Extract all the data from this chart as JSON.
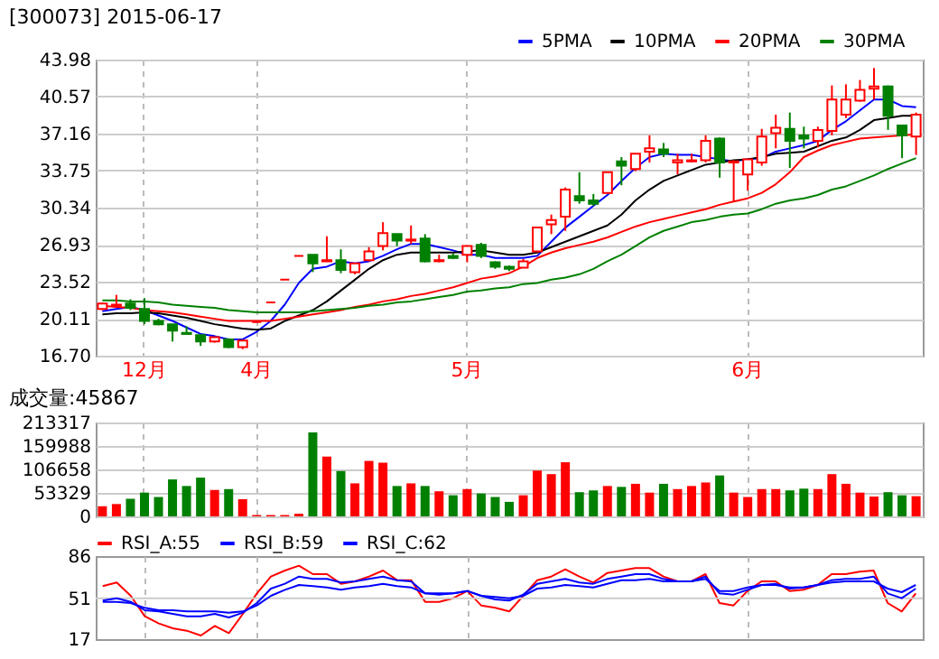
{
  "chart_data": [
    {
      "type": "candlestick",
      "title": "[300073] 2015-06-17",
      "legend": "top right",
      "grid": true,
      "categories": [
        null,
        null,
        null,
        "12月",
        null,
        null,
        null,
        null,
        null,
        null,
        null,
        "4月",
        null,
        null,
        null,
        null,
        null,
        null,
        null,
        null,
        null,
        null,
        null,
        null,
        null,
        null,
        "5月",
        null,
        null,
        null,
        null,
        null,
        null,
        null,
        null,
        null,
        null,
        null,
        null,
        null,
        null,
        null,
        null,
        null,
        null,
        null,
        "6月",
        null,
        null,
        null,
        null,
        null,
        null,
        null,
        null,
        null,
        null,
        null,
        null
      ],
      "ylim": [
        16.7,
        43.98
      ],
      "yticks": [
        {
          "value": 16.7,
          "label": "16.70"
        },
        20.11,
        23.52,
        26.93,
        30.34,
        33.75,
        37.16,
        40.57,
        43.98
      ],
      "ohlc": [
        [
          21.0,
          21.6,
          20.9,
          21.5
        ],
        [
          21.3,
          22.3,
          21.1,
          21.4
        ],
        [
          21.5,
          21.9,
          20.9,
          21.1
        ],
        [
          21.0,
          22.0,
          19.6,
          19.9
        ],
        [
          19.9,
          20.1,
          19.5,
          19.6
        ],
        [
          19.6,
          19.6,
          18.0,
          19.0
        ],
        [
          18.8,
          19.4,
          18.7,
          18.7
        ],
        [
          18.6,
          18.6,
          17.6,
          18.0
        ],
        [
          18.0,
          18.4,
          17.9,
          18.4
        ],
        [
          18.2,
          18.3,
          17.4,
          17.5
        ],
        [
          17.5,
          18.1,
          17.3,
          18.1
        ],
        [
          19.8,
          19.8,
          19.8,
          19.8
        ],
        [
          21.6,
          21.6,
          21.6,
          21.6
        ],
        [
          23.7,
          23.7,
          23.7,
          23.7
        ],
        [
          25.9,
          25.9,
          25.9,
          25.9
        ],
        [
          26.0,
          26.0,
          24.4,
          25.2
        ],
        [
          25.4,
          27.7,
          25.4,
          25.5
        ],
        [
          25.5,
          26.5,
          24.3,
          24.6
        ],
        [
          24.4,
          25.2,
          24.2,
          25.2
        ],
        [
          25.5,
          26.7,
          25.4,
          26.3
        ],
        [
          26.8,
          29.0,
          26.4,
          28.0
        ],
        [
          27.9,
          27.9,
          26.8,
          27.3
        ],
        [
          27.3,
          28.7,
          27.0,
          27.4
        ],
        [
          27.5,
          27.9,
          25.3,
          25.4
        ],
        [
          25.4,
          26.0,
          25.3,
          25.5
        ],
        [
          25.9,
          26.1,
          25.6,
          25.7
        ],
        [
          26.0,
          26.8,
          25.3,
          26.8
        ],
        [
          26.9,
          27.1,
          25.7,
          25.9
        ],
        [
          25.3,
          25.4,
          24.7,
          24.9
        ],
        [
          24.9,
          25.0,
          24.5,
          24.7
        ],
        [
          24.8,
          25.6,
          24.8,
          25.4
        ],
        [
          26.3,
          28.5,
          26.3,
          28.5
        ],
        [
          28.8,
          29.7,
          27.9,
          29.2
        ],
        [
          29.5,
          32.2,
          28.2,
          32.0
        ],
        [
          31.4,
          33.6,
          30.7,
          31.0
        ],
        [
          31.0,
          31.6,
          30.5,
          30.7
        ],
        [
          31.7,
          33.6,
          31.7,
          33.6
        ],
        [
          34.6,
          35.0,
          32.4,
          34.2
        ],
        [
          33.9,
          35.3,
          33.7,
          35.3
        ],
        [
          35.5,
          37.0,
          34.5,
          35.8
        ],
        [
          35.7,
          36.3,
          35.0,
          35.3
        ],
        [
          34.5,
          35.3,
          33.4,
          34.7
        ],
        [
          34.6,
          35.3,
          34.5,
          34.7
        ],
        [
          34.7,
          37.0,
          34.5,
          36.5
        ],
        [
          36.7,
          36.8,
          33.1,
          34.5
        ],
        [
          34.5,
          34.7,
          30.9,
          34.6
        ],
        [
          33.4,
          34.8,
          31.9,
          34.8
        ],
        [
          34.5,
          37.6,
          34.2,
          36.9
        ],
        [
          37.2,
          38.9,
          35.8,
          37.7
        ],
        [
          37.6,
          39.1,
          34.0,
          36.5
        ],
        [
          37.0,
          37.8,
          35.8,
          36.7
        ],
        [
          36.5,
          37.8,
          35.9,
          37.5
        ],
        [
          37.4,
          41.6,
          37.0,
          40.3
        ],
        [
          38.9,
          41.7,
          38.6,
          40.3
        ],
        [
          40.2,
          42.1,
          40.1,
          41.2
        ],
        [
          41.3,
          43.2,
          40.3,
          41.5
        ],
        [
          41.5,
          41.6,
          37.5,
          38.8
        ],
        [
          37.9,
          37.9,
          34.9,
          37.0
        ],
        [
          36.9,
          39.1,
          35.2,
          38.9
        ]
      ],
      "colors": [
        "#ff0000",
        "#ff0000",
        "#008000",
        "#008000",
        "#008000",
        "#008000",
        "#008000",
        "#008000",
        "#ff0000",
        "#008000",
        "#ff0000",
        "#ff0000",
        "#ff0000",
        "#ff0000",
        "#ff0000",
        "#008000",
        "#ff0000",
        "#008000",
        "#ff0000",
        "#ff0000",
        "#ff0000",
        "#008000",
        "#ff0000",
        "#008000",
        "#ff0000",
        "#008000",
        "#ff0000",
        "#008000",
        "#008000",
        "#008000",
        "#ff0000",
        "#ff0000",
        "#ff0000",
        "#ff0000",
        "#008000",
        "#008000",
        "#ff0000",
        "#008000",
        "#ff0000",
        "#ff0000",
        "#008000",
        "#ff0000",
        "#ff0000",
        "#ff0000",
        "#008000",
        "#ff0000",
        "#ff0000",
        "#ff0000",
        "#ff0000",
        "#008000",
        "#008000",
        "#ff0000",
        "#ff0000",
        "#ff0000",
        "#ff0000",
        "#ff0000",
        "#008000",
        "#008000",
        "#ff0000"
      ],
      "series": [
        {
          "name": "5PMA",
          "type": "line",
          "color": "#0000ff",
          "values": [
            20.8,
            21.0,
            21.2,
            20.9,
            20.4,
            19.9,
            19.3,
            18.7,
            18.5,
            18.2,
            18.2,
            18.9,
            19.9,
            21.4,
            23.4,
            24.7,
            24.9,
            25.4,
            25.2,
            25.4,
            25.9,
            26.5,
            27.0,
            27.0,
            26.7,
            26.4,
            26.0,
            26.0,
            25.7,
            25.7,
            25.7,
            25.9,
            27.2,
            28.5,
            29.5,
            30.5,
            31.5,
            32.8,
            34.0,
            35.0,
            35.3,
            35.2,
            35.2,
            35.0,
            34.8,
            34.6,
            34.8,
            34.9,
            35.5,
            35.8,
            36.1,
            36.5,
            37.5,
            38.3,
            39.3,
            40.3,
            40.3,
            39.7,
            39.6
          ]
        },
        {
          "name": "10PMA",
          "type": "line",
          "color": "#000000",
          "values": [
            20.5,
            20.6,
            20.6,
            20.7,
            20.6,
            20.4,
            20.2,
            19.9,
            19.6,
            19.4,
            19.2,
            19.1,
            19.2,
            19.9,
            20.4,
            20.9,
            21.7,
            22.7,
            23.7,
            24.7,
            25.5,
            26.0,
            26.2,
            26.2,
            26.2,
            26.2,
            26.3,
            26.4,
            26.2,
            26.0,
            26.0,
            26.2,
            26.7,
            27.2,
            27.7,
            28.2,
            28.7,
            29.7,
            31.0,
            32.0,
            32.8,
            33.3,
            33.8,
            34.3,
            34.5,
            34.7,
            34.8,
            35.0,
            35.3,
            35.4,
            35.5,
            36.0,
            36.5,
            36.8,
            37.5,
            38.4,
            38.6,
            38.8,
            38.8
          ]
        },
        {
          "name": "20PMA",
          "type": "line",
          "color": "#ff0000",
          "values": [
            21.3,
            21.2,
            21.1,
            20.9,
            20.8,
            20.7,
            20.5,
            20.3,
            20.1,
            19.9,
            19.9,
            19.9,
            19.9,
            20.1,
            20.3,
            20.5,
            20.7,
            20.9,
            21.2,
            21.4,
            21.7,
            21.9,
            22.2,
            22.4,
            22.7,
            23.0,
            23.4,
            23.8,
            24.0,
            24.3,
            24.9,
            25.7,
            26.2,
            26.6,
            26.9,
            27.2,
            27.6,
            28.1,
            28.6,
            29.0,
            29.3,
            29.6,
            29.9,
            30.2,
            30.6,
            30.9,
            31.2,
            31.7,
            32.5,
            33.6,
            35.0,
            35.6,
            36.1,
            36.4,
            36.7,
            36.8,
            36.9,
            37.0,
            37.1
          ]
        },
        {
          "name": "30PMA",
          "type": "line",
          "color": "#008000",
          "values": [
            21.8,
            21.8,
            21.7,
            21.7,
            21.6,
            21.4,
            21.3,
            21.2,
            21.1,
            20.9,
            20.8,
            20.7,
            20.7,
            20.7,
            20.7,
            20.8,
            20.9,
            21.0,
            21.1,
            21.3,
            21.4,
            21.6,
            21.7,
            21.9,
            22.1,
            22.3,
            22.6,
            22.7,
            22.9,
            23.0,
            23.3,
            23.4,
            23.7,
            23.9,
            24.2,
            24.7,
            25.4,
            26.0,
            26.8,
            27.6,
            28.2,
            28.6,
            29.0,
            29.2,
            29.5,
            29.7,
            29.8,
            30.2,
            30.7,
            31.0,
            31.2,
            31.5,
            32.0,
            32.3,
            32.8,
            33.3,
            33.9,
            34.4,
            34.9
          ]
        }
      ]
    },
    {
      "type": "bar",
      "title": "成交量:45867",
      "grid": true,
      "tick_labels": "y",
      "categories": [
        null,
        null,
        null,
        null,
        null,
        null,
        null,
        null,
        null,
        null,
        null,
        null,
        null,
        null,
        null,
        null,
        null,
        null,
        null,
        null,
        null,
        null,
        null,
        null,
        null,
        null,
        null,
        null,
        null,
        null,
        null,
        null,
        null,
        null,
        null,
        null,
        null,
        null,
        null,
        null,
        null,
        null,
        null,
        null,
        null,
        null,
        null,
        null,
        null,
        null,
        null,
        null,
        null,
        null,
        null,
        null,
        null,
        null,
        null
      ],
      "ylim": [
        0,
        213317
      ],
      "yticks": [
        0,
        53329,
        106658,
        159988,
        213317
      ],
      "values": [
        23000,
        28000,
        40000,
        54000,
        44000,
        84000,
        69000,
        88000,
        60000,
        62000,
        39000,
        3000,
        3000,
        3000,
        6000,
        191000,
        136000,
        103000,
        75000,
        126000,
        122000,
        69000,
        75000,
        69000,
        57000,
        48000,
        62000,
        52000,
        44000,
        33000,
        48000,
        104000,
        96000,
        123000,
        55000,
        59000,
        69000,
        67000,
        74000,
        54000,
        74000,
        62000,
        69000,
        77000,
        93000,
        54000,
        44000,
        62000,
        62000,
        59000,
        63000,
        62000,
        96000,
        74000,
        54000,
        45000,
        55000,
        48000,
        45867
      ],
      "colors": [
        "#ff0000",
        "#ff0000",
        "#008000",
        "#008000",
        "#008000",
        "#008000",
        "#008000",
        "#008000",
        "#ff0000",
        "#008000",
        "#ff0000",
        "#ff0000",
        "#ff0000",
        "#ff0000",
        "#ff0000",
        "#008000",
        "#ff0000",
        "#008000",
        "#ff0000",
        "#ff0000",
        "#ff0000",
        "#008000",
        "#ff0000",
        "#008000",
        "#ff0000",
        "#008000",
        "#ff0000",
        "#008000",
        "#008000",
        "#008000",
        "#ff0000",
        "#ff0000",
        "#ff0000",
        "#ff0000",
        "#008000",
        "#008000",
        "#ff0000",
        "#008000",
        "#ff0000",
        "#ff0000",
        "#008000",
        "#ff0000",
        "#ff0000",
        "#ff0000",
        "#008000",
        "#ff0000",
        "#ff0000",
        "#ff0000",
        "#ff0000",
        "#008000",
        "#008000",
        "#ff0000",
        "#ff0000",
        "#ff0000",
        "#ff0000",
        "#ff0000",
        "#008000",
        "#008000",
        "#ff0000"
      ]
    },
    {
      "type": "line",
      "legend": "top left",
      "grid": "x",
      "tick_labels": "y",
      "ref_lines": [
        {
          "axis": "y",
          "value": 51,
          "color": "#cccccc"
        }
      ],
      "categories": [
        null,
        null,
        null,
        null,
        null,
        null,
        null,
        null,
        null,
        null,
        null,
        null,
        null,
        null,
        null,
        null,
        null,
        null,
        null,
        null,
        null,
        null,
        null,
        null,
        null,
        null,
        null,
        null,
        null,
        null,
        null,
        null,
        null,
        null,
        null,
        null,
        null,
        null,
        null,
        null,
        null,
        null,
        null,
        null,
        null,
        null,
        null,
        null,
        null,
        null,
        null,
        null,
        null,
        null,
        null,
        null,
        null,
        null,
        null
      ],
      "ylim": [
        17,
        86
      ],
      "yticks": [
        17,
        51,
        86
      ],
      "series": [
        {
          "name": "RSI_A:55",
          "color": "#ff0000",
          "values": [
            61,
            64,
            53,
            36,
            30,
            26,
            24,
            20,
            28,
            22,
            38,
            55,
            69,
            74,
            78,
            71,
            71,
            63,
            65,
            69,
            74,
            66,
            66,
            48,
            48,
            51,
            57,
            45,
            43,
            40,
            53,
            66,
            69,
            75,
            69,
            64,
            72,
            74,
            76,
            76,
            69,
            65,
            65,
            71,
            47,
            45,
            57,
            65,
            65,
            57,
            58,
            62,
            71,
            71,
            73,
            74,
            47,
            40,
            55
          ]
        },
        {
          "name": "RSI_B:59",
          "color": "#0000ff",
          "values": [
            49,
            51,
            48,
            41,
            40,
            38,
            36,
            36,
            38,
            35,
            39,
            47,
            59,
            63,
            69,
            67,
            67,
            64,
            65,
            67,
            69,
            66,
            65,
            55,
            54,
            55,
            57,
            53,
            50,
            49,
            54,
            63,
            65,
            67,
            64,
            63,
            67,
            69,
            71,
            71,
            67,
            65,
            65,
            69,
            55,
            54,
            58,
            62,
            63,
            59,
            60,
            62,
            66,
            67,
            67,
            69,
            55,
            51,
            59
          ]
        },
        {
          "name": "RSI_C:62",
          "color": "#0000ff",
          "values": [
            48,
            48,
            47,
            43,
            41,
            41,
            40,
            40,
            40,
            39,
            40,
            45,
            53,
            58,
            62,
            61,
            60,
            58,
            60,
            61,
            63,
            61,
            60,
            55,
            55,
            55,
            57,
            53,
            52,
            51,
            53,
            59,
            60,
            62,
            61,
            60,
            63,
            66,
            66,
            67,
            65,
            65,
            65,
            67,
            57,
            57,
            60,
            62,
            62,
            60,
            60,
            62,
            64,
            65,
            65,
            65,
            59,
            56,
            62
          ]
        }
      ]
    }
  ]
}
